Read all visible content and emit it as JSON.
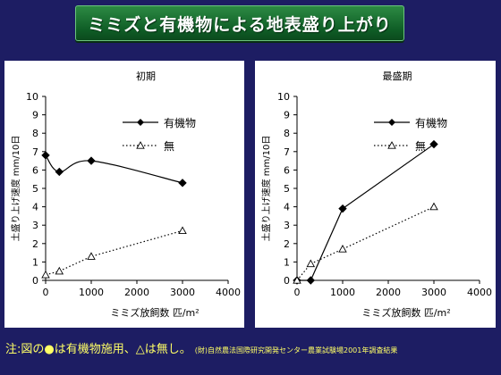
{
  "title": "ミミズと有機物による地表盛り上がり",
  "footer": {
    "note": "注:図の●は有機物施用、△は無し。",
    "source": "(財)自然農法国際研究開発センター農業試験場2001年調査結果"
  },
  "colors": {
    "background": "#1d1d63",
    "title_band": "#1a7432",
    "note_text": "#ffff66",
    "series_organic": "#000000",
    "series_none": "#000000"
  },
  "chart_data": [
    {
      "type": "line",
      "title": "初期",
      "xlabel": "ミミズ放飼数 匹/m²",
      "ylabel": "土盛り上げ速度 mm/10日",
      "xlim": [
        0,
        4000
      ],
      "ylim": [
        0,
        10
      ],
      "xticks": [
        "0",
        "1000",
        "2000",
        "3000",
        "4000"
      ],
      "yticks": [
        "0",
        "1",
        "2",
        "3",
        "4",
        "5",
        "6",
        "7",
        "8",
        "9",
        "10"
      ],
      "grid": false,
      "legend_position": "top-right",
      "series": [
        {
          "name": "有機物",
          "marker": "filled-diamond",
          "line": "solid",
          "smooth": true,
          "x": [
            0,
            300,
            1000,
            3000
          ],
          "y": [
            6.8,
            5.9,
            6.5,
            5.3
          ]
        },
        {
          "name": "無",
          "marker": "open-triangle",
          "line": "dotted",
          "smooth": false,
          "x": [
            0,
            300,
            1000,
            3000
          ],
          "y": [
            0.3,
            0.5,
            1.3,
            2.7
          ]
        }
      ]
    },
    {
      "type": "line",
      "title": "最盛期",
      "xlabel": "ミミズ放飼数 匹/m²",
      "ylabel": "土盛り上げ速度 mm/10日",
      "xlim": [
        0,
        4000
      ],
      "ylim": [
        0,
        10
      ],
      "xticks": [
        "0",
        "1000",
        "2000",
        "3000",
        "4000"
      ],
      "yticks": [
        "0",
        "1",
        "2",
        "3",
        "4",
        "5",
        "6",
        "7",
        "8",
        "9",
        "10"
      ],
      "grid": false,
      "legend_position": "top-right",
      "series": [
        {
          "name": "有機物",
          "marker": "filled-diamond",
          "line": "solid",
          "smooth": false,
          "x": [
            0,
            300,
            1000,
            3000
          ],
          "y": [
            0,
            0,
            3.9,
            7.4
          ]
        },
        {
          "name": "無",
          "marker": "open-triangle",
          "line": "dotted",
          "smooth": false,
          "x": [
            0,
            300,
            1000,
            3000
          ],
          "y": [
            0,
            0.9,
            1.7,
            4.0
          ]
        }
      ]
    }
  ]
}
